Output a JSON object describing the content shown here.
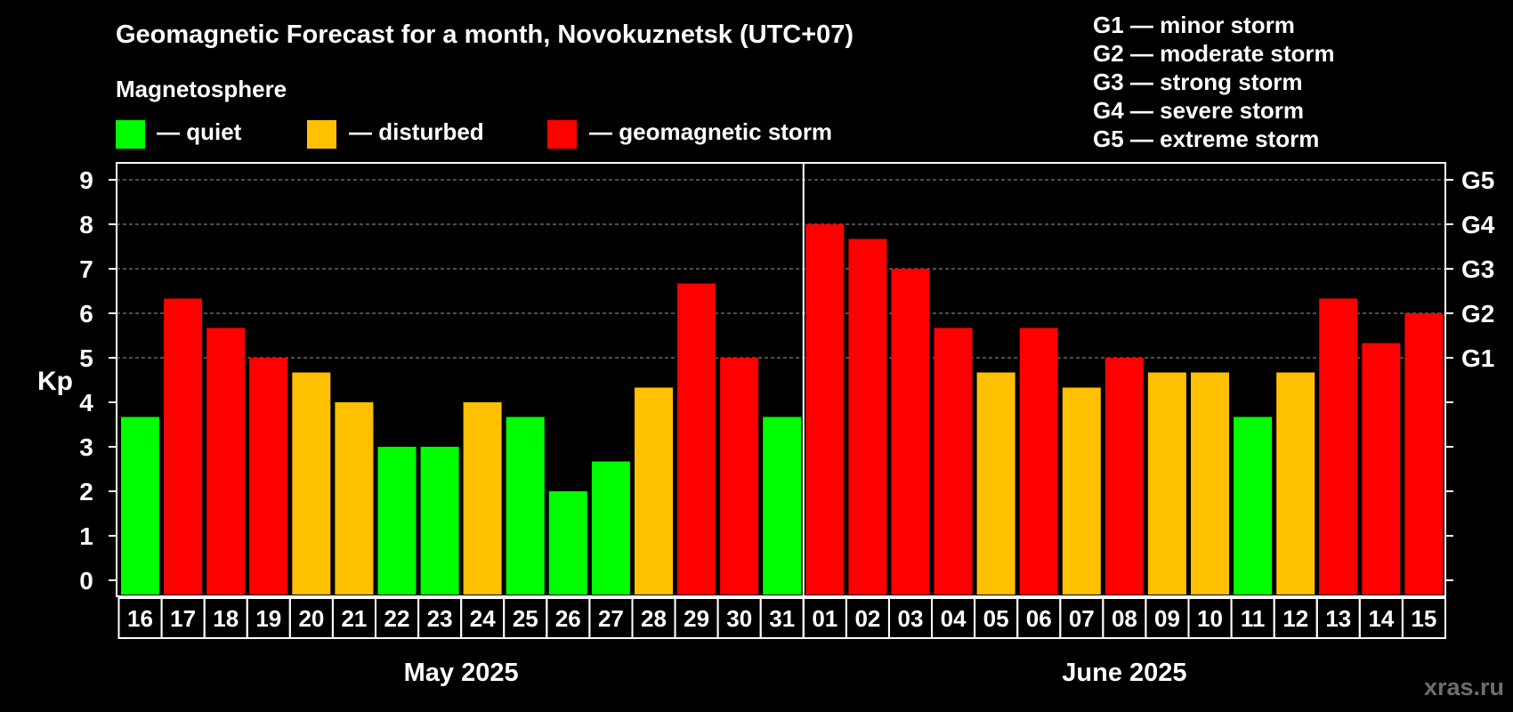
{
  "title": "Geomagnetic Forecast for a month, Novokuznetsk (UTC+07)",
  "legend": {
    "heading": "Magnetosphere",
    "items": [
      {
        "label": "— quiet",
        "color": "#00ff00"
      },
      {
        "label": "— disturbed",
        "color": "#ffc000"
      },
      {
        "label": "— geomagnetic storm",
        "color": "#ff0000"
      }
    ]
  },
  "storm_scale": [
    "G1 — minor storm",
    "G2 — moderate storm",
    "G3 — strong storm",
    "G4 — severe storm",
    "G5 — extreme storm"
  ],
  "watermark": "xras.ru",
  "colors": {
    "background": "#000000",
    "text": "#ffffff",
    "quiet": "#00ff00",
    "disturbed": "#ffc000",
    "storm": "#ff0000",
    "grid": "#9a9a9a"
  },
  "chart_data": {
    "type": "bar",
    "ylabel": "Kp",
    "ylim": [
      0,
      9
    ],
    "yticks": [
      0,
      1,
      2,
      3,
      4,
      5,
      6,
      7,
      8,
      9
    ],
    "right_axis": [
      {
        "kp": 5,
        "label": "G1"
      },
      {
        "kp": 6,
        "label": "G2"
      },
      {
        "kp": 7,
        "label": "G3"
      },
      {
        "kp": 8,
        "label": "G4"
      },
      {
        "kp": 9,
        "label": "G5"
      }
    ],
    "grid": "dashed horizontal at Kp 5–9",
    "months": [
      {
        "label": "May 2025",
        "days": [
          "16",
          "17",
          "18",
          "19",
          "20",
          "21",
          "22",
          "23",
          "24",
          "25",
          "26",
          "27",
          "28",
          "29",
          "30",
          "31"
        ]
      },
      {
        "label": "June 2025",
        "days": [
          "01",
          "02",
          "03",
          "04",
          "05",
          "06",
          "07",
          "08",
          "09",
          "10",
          "11",
          "12",
          "13",
          "14",
          "15"
        ]
      }
    ],
    "values": [
      3.67,
      6.33,
      5.67,
      5.0,
      4.67,
      4.0,
      3.0,
      3.0,
      4.0,
      3.67,
      2.0,
      2.67,
      4.33,
      6.67,
      5.0,
      3.67,
      8.0,
      7.67,
      7.0,
      5.67,
      4.67,
      5.67,
      4.33,
      5.0,
      4.67,
      4.67,
      3.67,
      4.67,
      6.33,
      5.33,
      6.0
    ],
    "levels": [
      "quiet",
      "storm",
      "storm",
      "storm",
      "disturbed",
      "disturbed",
      "quiet",
      "quiet",
      "disturbed",
      "quiet",
      "quiet",
      "quiet",
      "disturbed",
      "storm",
      "storm",
      "quiet",
      "storm",
      "storm",
      "storm",
      "storm",
      "disturbed",
      "storm",
      "disturbed",
      "storm",
      "disturbed",
      "disturbed",
      "quiet",
      "disturbed",
      "storm",
      "storm",
      "storm"
    ]
  }
}
